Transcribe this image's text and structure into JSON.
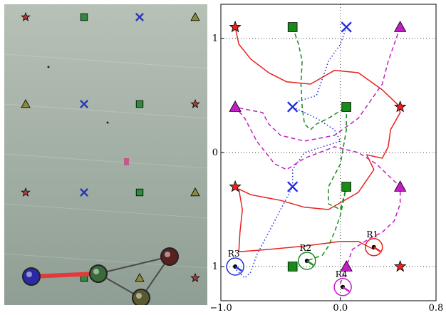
{
  "photo": {
    "description_icons": "floor marker pattern of stars, squares, crosses, triangles",
    "colors": {
      "floor_top": "#b7c1b6",
      "floor_bottom": "#8f9e94",
      "star": "#b23b3b",
      "square": "#2f8a3c",
      "cross": "#2a36b8",
      "triangle": "#8a8a3a",
      "bar_red": "#e23a3a",
      "link_gray": "#4a4a4a"
    },
    "markers": [
      {
        "kind": "star",
        "col": 0,
        "row": 0
      },
      {
        "kind": "square",
        "col": 1,
        "row": 0
      },
      {
        "kind": "cross",
        "col": 2,
        "row": 0
      },
      {
        "kind": "triangle",
        "col": 3,
        "row": 0
      },
      {
        "kind": "triangle",
        "col": 0,
        "row": 1
      },
      {
        "kind": "cross",
        "col": 1,
        "row": 1
      },
      {
        "kind": "square",
        "col": 2,
        "row": 1
      },
      {
        "kind": "star",
        "col": 3,
        "row": 1
      },
      {
        "kind": "star",
        "col": 0,
        "row": 2
      },
      {
        "kind": "cross",
        "col": 1,
        "row": 2
      },
      {
        "kind": "square",
        "col": 2,
        "row": 2
      },
      {
        "kind": "triangle",
        "col": 3,
        "row": 2
      },
      {
        "kind": "square",
        "col": 1,
        "row": 3
      },
      {
        "kind": "triangle",
        "col": 2,
        "row": 3
      },
      {
        "kind": "star",
        "col": 3,
        "row": 3
      }
    ]
  },
  "chart_data": {
    "type": "scatter",
    "xlim": [
      -1.0,
      0.8
    ],
    "ylim": [
      -1.3,
      1.3
    ],
    "x_ticks": [
      -1.0,
      0.0,
      0.8
    ],
    "x_tick_labels": [
      "−1.0",
      "0.0",
      "0.8"
    ],
    "y_ticks": [
      1,
      0,
      -1
    ],
    "y_tick_labels": [
      "1",
      "0",
      "−1"
    ],
    "grid": "dotted at x=0 and y=0, -1, 1",
    "markers": [
      {
        "kind": "star",
        "color": "#e8231f",
        "points": [
          [
            -0.88,
            1.1
          ],
          [
            0.5,
            0.4
          ],
          [
            -0.88,
            -0.3
          ],
          [
            0.5,
            -1.0
          ]
        ]
      },
      {
        "kind": "square",
        "color": "#1a8a1a",
        "points": [
          [
            -0.4,
            1.1
          ],
          [
            0.05,
            0.4
          ],
          [
            0.05,
            -0.3
          ],
          [
            -0.4,
            -1.0
          ]
        ]
      },
      {
        "kind": "cross",
        "color": "#1f2be0",
        "points": [
          [
            0.05,
            1.1
          ],
          [
            -0.4,
            0.4
          ],
          [
            -0.4,
            -0.3
          ]
        ]
      },
      {
        "kind": "triangle",
        "color": "#c21fc2",
        "points": [
          [
            0.5,
            1.1
          ],
          [
            -0.88,
            0.4
          ],
          [
            0.5,
            -0.3
          ],
          [
            0.05,
            -1.0
          ]
        ]
      }
    ],
    "series": [
      {
        "color": "#e8231f",
        "style": "solid",
        "points": [
          [
            -0.88,
            1.1
          ],
          [
            -0.85,
            0.95
          ],
          [
            -0.75,
            0.82
          ],
          [
            -0.6,
            0.7
          ],
          [
            -0.45,
            0.62
          ],
          [
            -0.25,
            0.6
          ],
          [
            -0.05,
            0.72
          ],
          [
            0.15,
            0.7
          ],
          [
            0.35,
            0.55
          ],
          [
            0.48,
            0.42
          ],
          [
            0.5,
            0.35
          ],
          [
            0.42,
            0.2
          ],
          [
            0.4,
            0.05
          ],
          [
            0.35,
            -0.05
          ],
          [
            0.22,
            -0.02
          ],
          [
            0.28,
            -0.15
          ],
          [
            0.15,
            -0.35
          ],
          [
            -0.1,
            -0.5
          ],
          [
            -0.3,
            -0.48
          ],
          [
            -0.5,
            -0.42
          ],
          [
            -0.75,
            -0.37
          ],
          [
            -0.85,
            -0.32
          ],
          [
            -0.82,
            -0.5
          ],
          [
            -0.84,
            -0.7
          ],
          [
            -0.85,
            -0.87
          ],
          [
            -0.6,
            -0.85
          ],
          [
            -0.3,
            -0.82
          ],
          [
            0.0,
            -0.78
          ],
          [
            0.15,
            -0.78
          ],
          [
            0.28,
            -0.85
          ]
        ]
      },
      {
        "color": "#1a8a1a",
        "style": "dashed",
        "points": [
          [
            -0.4,
            1.1
          ],
          [
            -0.35,
            0.95
          ],
          [
            -0.32,
            0.8
          ],
          [
            -0.33,
            0.6
          ],
          [
            -0.32,
            0.4
          ],
          [
            -0.3,
            0.25
          ],
          [
            -0.25,
            0.2
          ],
          [
            -0.2,
            0.25
          ],
          [
            -0.1,
            0.3
          ],
          [
            0.05,
            0.4
          ],
          [
            0.05,
            0.2
          ],
          [
            0.0,
            -0.1
          ],
          [
            -0.1,
            -0.3
          ],
          [
            -0.1,
            -0.45
          ],
          [
            0.0,
            -0.5
          ],
          [
            0.05,
            -0.3
          ],
          [
            0.0,
            -0.55
          ],
          [
            -0.05,
            -0.7
          ],
          [
            -0.1,
            -0.82
          ],
          [
            -0.15,
            -0.9
          ],
          [
            -0.28,
            -0.95
          ]
        ]
      },
      {
        "color": "#1f2be0",
        "style": "dotted",
        "points": [
          [
            0.05,
            1.1
          ],
          [
            0.0,
            0.95
          ],
          [
            -0.1,
            0.8
          ],
          [
            -0.15,
            0.65
          ],
          [
            -0.2,
            0.5
          ],
          [
            -0.35,
            0.45
          ],
          [
            -0.4,
            0.4
          ],
          [
            -0.2,
            0.3
          ],
          [
            -0.05,
            0.2
          ],
          [
            0.0,
            0.1
          ],
          [
            -0.15,
            0.05
          ],
          [
            -0.3,
            0.0
          ],
          [
            -0.4,
            -0.15
          ],
          [
            -0.4,
            -0.3
          ],
          [
            -0.5,
            -0.5
          ],
          [
            -0.6,
            -0.7
          ],
          [
            -0.7,
            -0.9
          ],
          [
            -0.75,
            -1.05
          ],
          [
            -0.8,
            -1.1
          ],
          [
            -0.9,
            -1.0
          ]
        ]
      },
      {
        "color": "#c21fc2",
        "style": "dashed",
        "points": [
          [
            0.5,
            1.1
          ],
          [
            0.45,
            0.95
          ],
          [
            0.4,
            0.8
          ],
          [
            0.35,
            0.6
          ],
          [
            0.25,
            0.45
          ],
          [
            0.15,
            0.3
          ],
          [
            -0.05,
            0.15
          ],
          [
            -0.3,
            0.1
          ],
          [
            -0.5,
            0.15
          ],
          [
            -0.6,
            0.25
          ],
          [
            -0.65,
            0.35
          ],
          [
            -0.8,
            0.38
          ],
          [
            -0.88,
            0.4
          ],
          [
            -0.8,
            0.3
          ],
          [
            -0.7,
            0.1
          ],
          [
            -0.55,
            -0.1
          ],
          [
            -0.45,
            -0.15
          ],
          [
            -0.3,
            -0.05
          ],
          [
            -0.05,
            0.05
          ],
          [
            0.15,
            0.0
          ],
          [
            0.3,
            -0.1
          ],
          [
            0.5,
            -0.3
          ],
          [
            0.5,
            -0.45
          ],
          [
            0.45,
            -0.6
          ],
          [
            0.35,
            -0.7
          ],
          [
            0.25,
            -0.75
          ],
          [
            0.1,
            -0.85
          ],
          [
            0.05,
            -1.0
          ],
          [
            0.0,
            -1.15
          ]
        ]
      }
    ],
    "robots": [
      {
        "label": "R1",
        "x": 0.28,
        "y": -0.83,
        "color": "#e8231f"
      },
      {
        "label": "R2",
        "x": -0.28,
        "y": -0.95,
        "color": "#1a8a1a"
      },
      {
        "label": "R3",
        "x": -0.88,
        "y": -1.0,
        "color": "#1f2be0"
      },
      {
        "label": "R4",
        "x": 0.02,
        "y": -1.18,
        "color": "#c21fc2"
      }
    ]
  }
}
